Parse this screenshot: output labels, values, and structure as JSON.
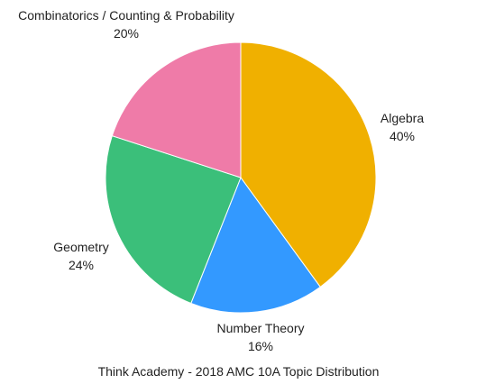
{
  "chart_data": {
    "type": "pie",
    "title": "Think Academy - 2018 AMC 10A Topic Distribution",
    "slices": [
      {
        "label": "Algebra",
        "value": 40,
        "percent_label": "40%",
        "color": "#F0B000"
      },
      {
        "label": "Number Theory",
        "value": 16,
        "percent_label": "16%",
        "color": "#3399FF"
      },
      {
        "label": "Geometry",
        "value": 24,
        "percent_label": "24%",
        "color": "#3BBF7A"
      },
      {
        "label": "Combinatorics / Counting & Probability",
        "value": 20,
        "percent_label": "20%",
        "color": "#EF7BA8"
      }
    ],
    "start": "12 o'clock",
    "direction": "clockwise"
  }
}
